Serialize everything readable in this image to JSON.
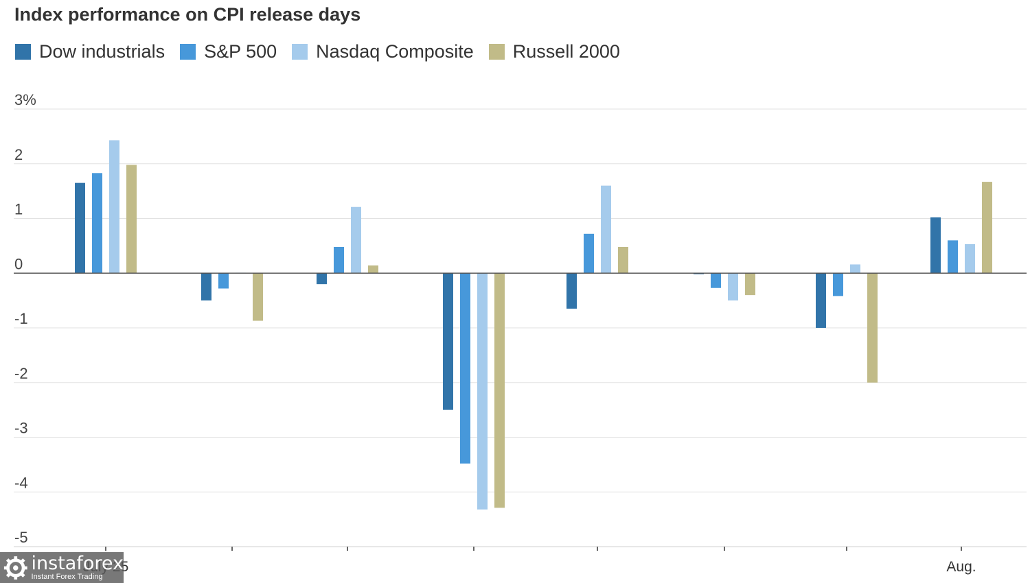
{
  "chart_data": {
    "type": "bar",
    "title": "Index performance on CPI release days",
    "y_unit_suffix": "%",
    "ylim": [
      -5,
      3
    ],
    "yticks": [
      3,
      2,
      1,
      0,
      -1,
      -2,
      -3,
      -4,
      -5
    ],
    "ytick_labels": [
      "3%",
      "2",
      "1",
      "0",
      "-1",
      "-2",
      "-3",
      "-4",
      "-5"
    ],
    "grid": true,
    "legend_position": "top-left",
    "xtick_labels": [
      {
        "group": 0,
        "label": "July 25"
      },
      {
        "group": 7,
        "label": "Aug."
      }
    ],
    "groups": 8,
    "series": [
      {
        "name": "Dow industrials",
        "color": "#3174a9",
        "values": [
          1.65,
          -0.5,
          -0.2,
          -2.5,
          -0.65,
          -0.02,
          -1.0,
          1.02
        ]
      },
      {
        "name": "S&P 500",
        "color": "#4798da",
        "values": [
          1.83,
          -0.28,
          0.48,
          -3.48,
          0.72,
          -0.27,
          -0.42,
          0.6
        ]
      },
      {
        "name": "Nasdaq Composite",
        "color": "#a5cbec",
        "values": [
          2.43,
          0.01,
          1.21,
          -4.32,
          1.6,
          -0.5,
          0.16,
          0.53
        ]
      },
      {
        "name": "Russell 2000",
        "color": "#c1bb88",
        "values": [
          1.98,
          -0.87,
          0.14,
          -4.29,
          0.48,
          -0.4,
          -2.0,
          1.67
        ]
      }
    ]
  },
  "watermark": {
    "name": "instaforex",
    "tagline": "Instant Forex Trading"
  }
}
